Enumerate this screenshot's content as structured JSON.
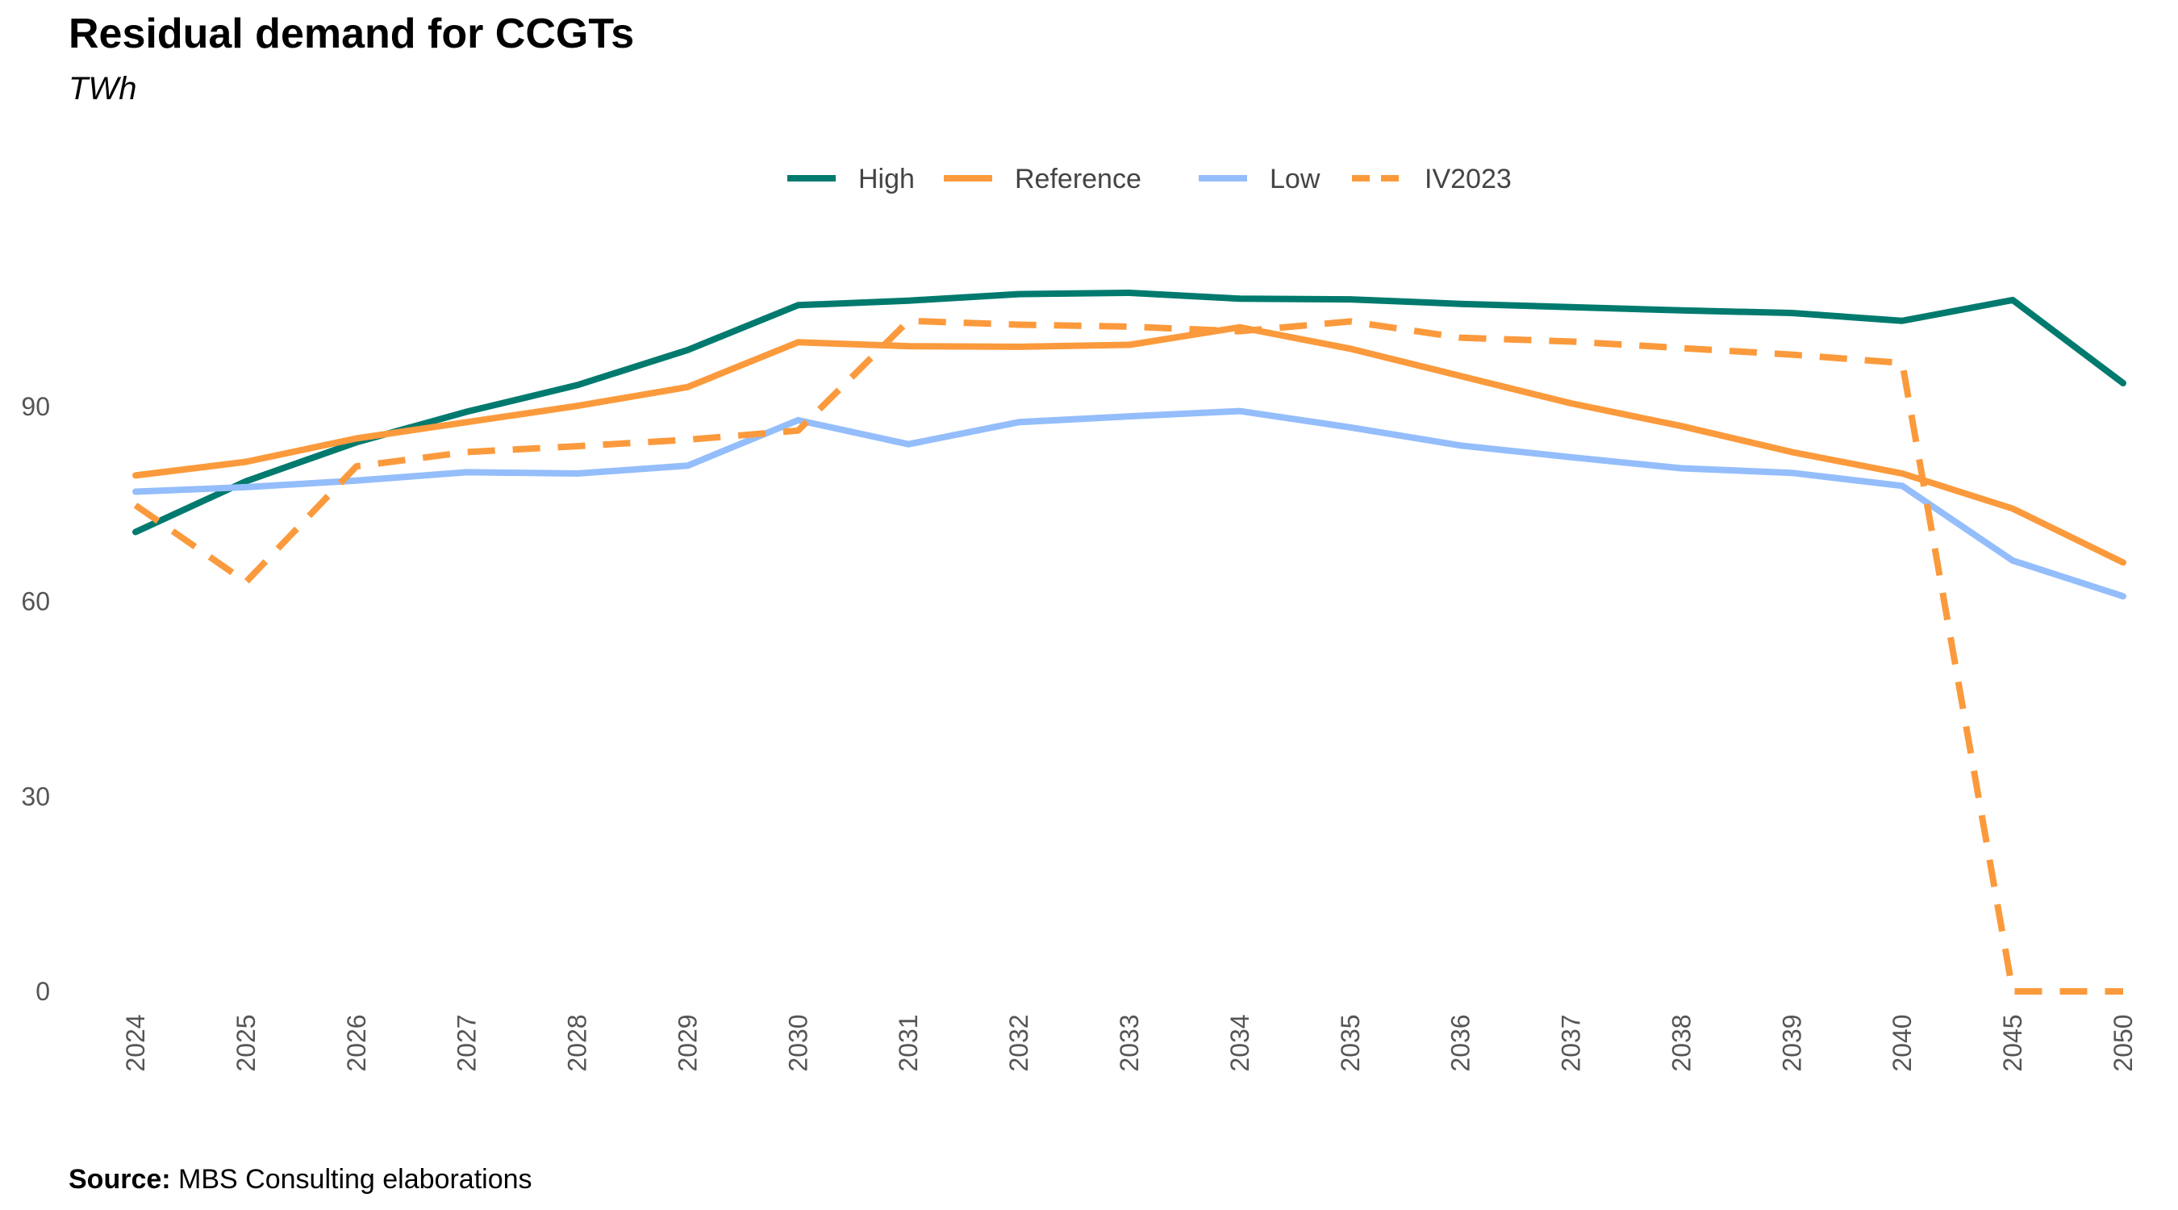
{
  "title": "Residual demand for CCGTs",
  "subtitle": "TWh",
  "source": {
    "label": "Source:",
    "text": "MBS Consulting elaborations"
  },
  "chart_data": {
    "type": "line",
    "categories": [
      "2024",
      "2025",
      "2026",
      "2027",
      "2028",
      "2029",
      "2030",
      "2031",
      "2032",
      "2033",
      "2034",
      "2035",
      "2036",
      "2037",
      "2038",
      "2039",
      "2040",
      "2045",
      "2050"
    ],
    "series": [
      {
        "name": "High",
        "color": "#007a6e",
        "dashed": false,
        "values": [
          70.7,
          78.5,
          84.5,
          89.2,
          93.3,
          98.7,
          105.6,
          106.3,
          107.3,
          107.5,
          106.6,
          106.5,
          105.8,
          105.3,
          104.8,
          104.4,
          103.2,
          106.4,
          93.6
        ]
      },
      {
        "name": "Reference",
        "color": "#fb9a3c",
        "dashed": false,
        "values": [
          79.4,
          81.5,
          85.1,
          87.6,
          90.1,
          93.0,
          99.9,
          99.3,
          99.2,
          99.5,
          102.2,
          98.9,
          94.7,
          90.5,
          87.0,
          83.0,
          79.7,
          74.3,
          66.0
        ]
      },
      {
        "name": "Low",
        "color": "#94bdfb",
        "dashed": false,
        "values": [
          76.9,
          77.6,
          78.6,
          79.9,
          79.7,
          80.9,
          87.9,
          84.2,
          87.6,
          88.5,
          89.3,
          86.8,
          84.0,
          82.2,
          80.5,
          79.8,
          77.8,
          66.3,
          60.8
        ]
      },
      {
        "name": "IV2023",
        "color": "#fb9a3c",
        "dashed": true,
        "values": [
          74.8,
          63.0,
          80.8,
          83.0,
          83.9,
          84.9,
          86.3,
          103.2,
          102.6,
          102.3,
          101.6,
          103.1,
          100.6,
          100.0,
          99.0,
          98.0,
          96.7,
          0,
          0
        ]
      }
    ],
    "yticks": [
      0,
      30,
      60,
      90
    ],
    "ylim": [
      0,
      120
    ],
    "xlabel": "",
    "ylabel": "",
    "legend_position": "top-center",
    "grid": false
  }
}
